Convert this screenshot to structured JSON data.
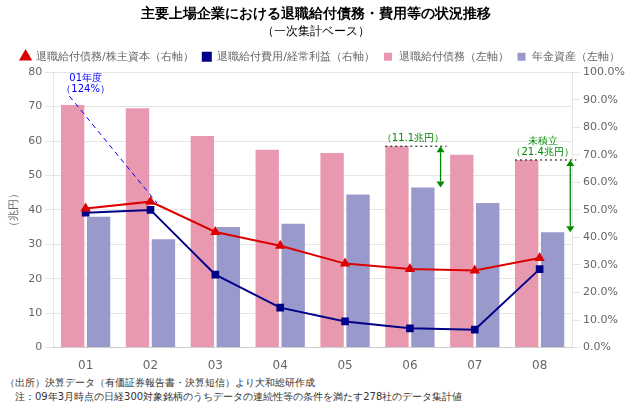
{
  "chart_data": {
    "type": "bar",
    "title": "主要上場企業における退職給付債務・費用等の状況推移",
    "subtitle": "（一次集計ベース）",
    "ylabel": "（兆円）",
    "categories": [
      "01",
      "02",
      "03",
      "04",
      "05",
      "06",
      "07",
      "08"
    ],
    "series": [
      {
        "name": "退職給付債務（左軸）",
        "type": "bar",
        "color": "#E899B0",
        "values": [
          70.5,
          69.5,
          61.5,
          57.5,
          56.5,
          58.5,
          56.0,
          54.5
        ]
      },
      {
        "name": "年金資産（左軸）",
        "type": "bar",
        "color": "#9999CC",
        "values": [
          38.0,
          31.5,
          35.0,
          36.0,
          44.5,
          46.5,
          42.0,
          33.5
        ]
      },
      {
        "name": "退職給付債務/株主資本（右軸）",
        "type": "line",
        "axis": "y2",
        "marker": "triangle",
        "color": "#DD0000",
        "values": [
          50.5,
          53.0,
          42.0,
          37.0,
          30.5,
          28.5,
          28.0,
          32.5
        ]
      },
      {
        "name": "退職給付費用/経常利益（右軸）",
        "type": "line",
        "axis": "y2",
        "marker": "square",
        "color": "#000088",
        "values": [
          49.0,
          50.0,
          26.5,
          14.5,
          9.5,
          7.0,
          6.5,
          28.5
        ]
      }
    ],
    "ylim": [
      0,
      80
    ],
    "yticks": [
      0,
      10,
      20,
      30,
      40,
      50,
      60,
      70,
      80
    ],
    "y2lim": [
      0,
      100
    ],
    "y2ticks": [
      {
        "value": 0,
        "label": "0.0%"
      },
      {
        "value": 10,
        "label": "10.0%"
      },
      {
        "value": 20,
        "label": "20.0%"
      },
      {
        "value": 30,
        "label": "30.0%"
      },
      {
        "value": 40,
        "label": "40.0%"
      },
      {
        "value": 50,
        "label": "50.0%"
      },
      {
        "value": 60,
        "label": "60.0%"
      },
      {
        "value": 70,
        "label": "70.0%"
      },
      {
        "value": 80,
        "label": "80.0%"
      },
      {
        "value": 90,
        "label": "90.0%"
      },
      {
        "value": 100,
        "label": "100.0%"
      }
    ],
    "grid": true,
    "legend": "upper right",
    "annotations": [
      {
        "type": "line",
        "category": "01",
        "color": "blue",
        "line_style": "dashed",
        "text": [
          "01年度",
          "（124%）"
        ]
      },
      {
        "type": "arrow",
        "category": "06",
        "color": "#008800",
        "text": [
          "（11.1兆円）"
        ]
      },
      {
        "type": "arrow",
        "category": "08",
        "color": "#008800",
        "text": [
          "未積立",
          "（21.4兆円）"
        ]
      }
    ],
    "footer": [
      "（出所）決算データ（有価証券報告書・決算短信）より大和総研作成",
      "　注：09年3月時点の日経300対象銘柄のうちデータの連続性等の条件を満たす278社のデータ集計値"
    ]
  }
}
